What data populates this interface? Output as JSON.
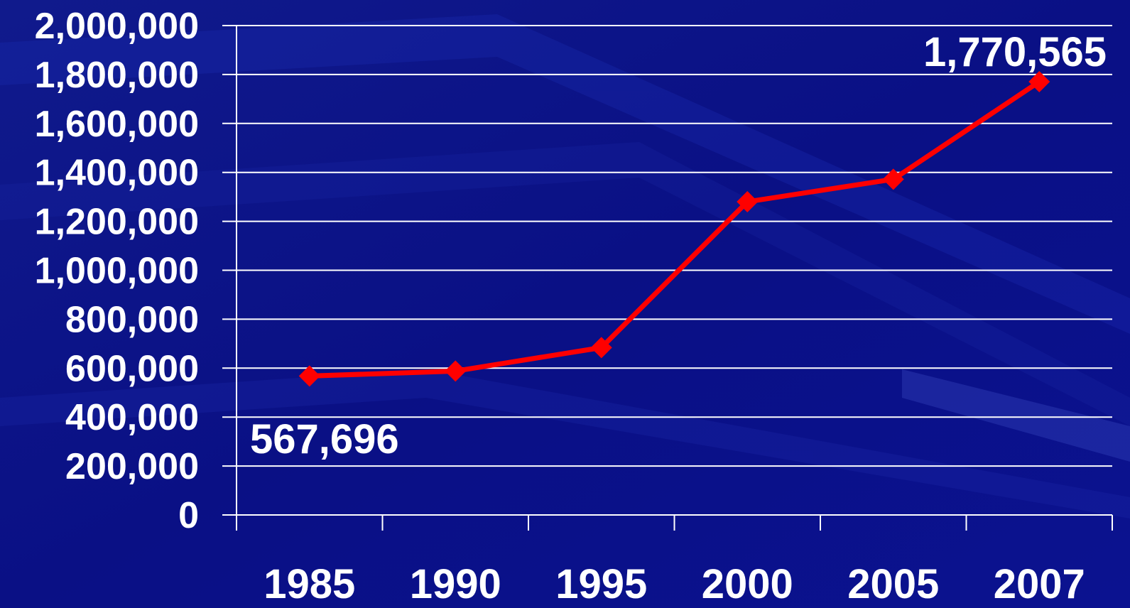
{
  "chart_data": {
    "type": "line",
    "title": "",
    "xlabel": "",
    "ylabel": "",
    "categories": [
      "1985",
      "1990",
      "1995",
      "2000",
      "2005",
      "2007"
    ],
    "series": [
      {
        "values": [
          567696,
          588000,
          684000,
          1280000,
          1372000,
          1770565
        ],
        "color": "#ff0000",
        "marker": "diamond"
      }
    ],
    "ylim": [
      0,
      2000000
    ],
    "y_ticks": [
      0,
      200000,
      400000,
      600000,
      800000,
      1000000,
      1200000,
      1400000,
      1600000,
      1800000,
      2000000
    ],
    "y_tick_labels": [
      "0",
      "200,000",
      "400,000",
      "600,000",
      "800,000",
      "1,000,000",
      "1,200,000",
      "1,400,000",
      "1,600,000",
      "1,800,000",
      "2,000,000"
    ],
    "grid": true,
    "legend": "none",
    "annotations": [
      {
        "category": "1985",
        "text": "567,696"
      },
      {
        "category": "2007",
        "text": "1,770,565"
      }
    ],
    "colors": {
      "background": "#0a0f7a",
      "grid": "#ffffff",
      "text": "#ffffff",
      "line": "#ff0000"
    }
  }
}
